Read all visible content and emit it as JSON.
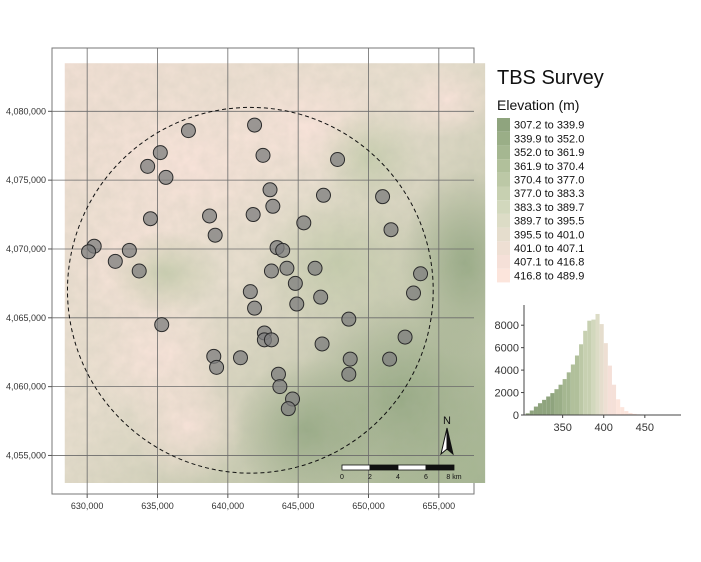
{
  "title": "TBS Survey",
  "legend": {
    "title": "Elevation (m)",
    "classes": [
      {
        "label": "307.2 to 339.9",
        "color": "#8fa47e"
      },
      {
        "label": "339.9 to 352.0",
        "color": "#9aae87"
      },
      {
        "label": "352.0 to 361.9",
        "color": "#a5b791"
      },
      {
        "label": "361.9 to 370.4",
        "color": "#b1c09b"
      },
      {
        "label": "370.4 to 377.0",
        "color": "#bcc8a6"
      },
      {
        "label": "377.0 to 383.3",
        "color": "#c7d0b1"
      },
      {
        "label": "383.3 to 389.7",
        "color": "#d2d8bd"
      },
      {
        "label": "389.7 to 395.5",
        "color": "#dcdcc6"
      },
      {
        "label": "395.5 to 401.0",
        "color": "#e5ddcd"
      },
      {
        "label": "401.0 to 407.1",
        "color": "#eedfd3"
      },
      {
        "label": "407.1 to 416.8",
        "color": "#f5e0d8"
      },
      {
        "label": "416.8 to 489.9",
        "color": "#fce5dc"
      }
    ]
  },
  "map": {
    "x_ticks": [
      630000,
      635000,
      640000,
      645000,
      650000,
      655000
    ],
    "x_tick_labels": [
      "630,000",
      "635,000",
      "640,000",
      "645,000",
      "650,000",
      "655,000"
    ],
    "y_ticks": [
      4055000,
      4060000,
      4065000,
      4070000,
      4075000,
      4080000
    ],
    "y_tick_labels": [
      "4,055,000",
      "4,060,000",
      "4,065,000",
      "4,070,000",
      "4,075,000",
      "4,080,000"
    ],
    "x_range": [
      627500,
      657500
    ],
    "y_range": [
      4052200,
      4084600
    ],
    "raster_extent": {
      "x": [
        628400,
        658300
      ],
      "y": [
        4053000,
        4083500
      ]
    },
    "survey_circle": {
      "center": [
        641600,
        4067000
      ],
      "radius": 13000
    },
    "sites": [
      [
        641900,
        4079000
      ],
      [
        637200,
        4078600
      ],
      [
        642500,
        4076800
      ],
      [
        635200,
        4077000
      ],
      [
        634300,
        4076000
      ],
      [
        635600,
        4075200
      ],
      [
        647800,
        4076500
      ],
      [
        643000,
        4074300
      ],
      [
        646800,
        4073900
      ],
      [
        651000,
        4073800
      ],
      [
        643200,
        4073100
      ],
      [
        641800,
        4072500
      ],
      [
        638700,
        4072400
      ],
      [
        634500,
        4072200
      ],
      [
        645400,
        4071900
      ],
      [
        639100,
        4071000
      ],
      [
        651600,
        4071400
      ],
      [
        630500,
        4070200
      ],
      [
        630100,
        4069800
      ],
      [
        633000,
        4069900
      ],
      [
        643500,
        4070100
      ],
      [
        643900,
        4069900
      ],
      [
        632000,
        4069100
      ],
      [
        633700,
        4068400
      ],
      [
        643100,
        4068400
      ],
      [
        644200,
        4068600
      ],
      [
        646200,
        4068600
      ],
      [
        653700,
        4068200
      ],
      [
        644800,
        4067500
      ],
      [
        641600,
        4066900
      ],
      [
        646600,
        4066500
      ],
      [
        653200,
        4066800
      ],
      [
        644900,
        4066000
      ],
      [
        641900,
        4065700
      ],
      [
        648600,
        4064900
      ],
      [
        635300,
        4064500
      ],
      [
        642600,
        4063900
      ],
      [
        642600,
        4063400
      ],
      [
        643100,
        4063400
      ],
      [
        652600,
        4063600
      ],
      [
        646700,
        4063100
      ],
      [
        639000,
        4062200
      ],
      [
        640900,
        4062100
      ],
      [
        648700,
        4062000
      ],
      [
        651500,
        4062000
      ],
      [
        639200,
        4061400
      ],
      [
        643600,
        4060900
      ],
      [
        648600,
        4060900
      ],
      [
        643700,
        4060000
      ],
      [
        644600,
        4059100
      ],
      [
        644300,
        4058400
      ]
    ],
    "north_label": "N",
    "scale_bar": {
      "labels": [
        "0",
        "2",
        "4",
        "6",
        "8 km"
      ],
      "length_km": 8
    }
  },
  "histogram": {
    "x_ticks": [
      350,
      400,
      450
    ],
    "y_ticks": [
      0,
      2000,
      4000,
      6000,
      8000
    ],
    "x_range": [
      303,
      494
    ],
    "y_range": [
      0,
      9800
    ],
    "bin_width": 5,
    "bins": [
      {
        "start": 305,
        "count": 150
      },
      {
        "start": 310,
        "count": 400
      },
      {
        "start": 315,
        "count": 750
      },
      {
        "start": 320,
        "count": 1050
      },
      {
        "start": 325,
        "count": 1350
      },
      {
        "start": 330,
        "count": 1650
      },
      {
        "start": 335,
        "count": 1950
      },
      {
        "start": 340,
        "count": 2300
      },
      {
        "start": 345,
        "count": 2700
      },
      {
        "start": 350,
        "count": 3200
      },
      {
        "start": 355,
        "count": 3800
      },
      {
        "start": 360,
        "count": 4500
      },
      {
        "start": 365,
        "count": 5300
      },
      {
        "start": 370,
        "count": 6300
      },
      {
        "start": 375,
        "count": 7500
      },
      {
        "start": 380,
        "count": 8400
      },
      {
        "start": 385,
        "count": 8500
      },
      {
        "start": 390,
        "count": 9000
      },
      {
        "start": 395,
        "count": 8100
      },
      {
        "start": 400,
        "count": 6400
      },
      {
        "start": 405,
        "count": 4400
      },
      {
        "start": 410,
        "count": 2700
      },
      {
        "start": 415,
        "count": 1400
      },
      {
        "start": 420,
        "count": 700
      },
      {
        "start": 425,
        "count": 350
      },
      {
        "start": 430,
        "count": 180
      },
      {
        "start": 435,
        "count": 100
      },
      {
        "start": 440,
        "count": 60
      },
      {
        "start": 445,
        "count": 40
      },
      {
        "start": 450,
        "count": 30
      },
      {
        "start": 455,
        "count": 20
      },
      {
        "start": 460,
        "count": 15
      },
      {
        "start": 465,
        "count": 10
      },
      {
        "start": 470,
        "count": 8
      },
      {
        "start": 475,
        "count": 5
      },
      {
        "start": 480,
        "count": 3
      },
      {
        "start": 485,
        "count": 2
      }
    ]
  }
}
